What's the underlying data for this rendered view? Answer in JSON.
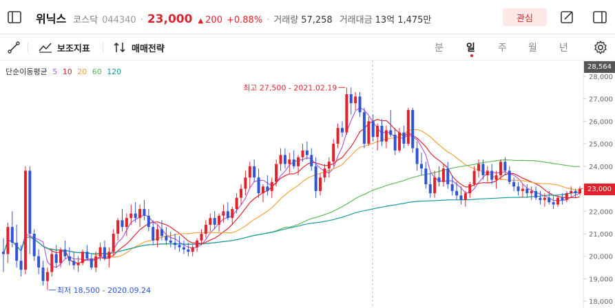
{
  "header": {
    "stock_name": "위닉스",
    "market": "코스닥",
    "code": "044340",
    "price": "23,000",
    "change_arrow": "▲",
    "change": "200",
    "change_pct": "+0.88%",
    "volume_label": "거래량",
    "volume": "57,258",
    "amount_label": "거래대금",
    "amount": "13억 1,475만",
    "favorite_label": "관심"
  },
  "toolbar": {
    "indicator_label": "보조지표",
    "strategy_label": "매매전략",
    "periods": [
      "분",
      "일",
      "주",
      "월",
      "년"
    ],
    "active_period": "일"
  },
  "legend": {
    "title": "단순이동평균",
    "ma": [
      {
        "label": "5",
        "color": "#b15bd6"
      },
      {
        "label": "10",
        "color": "#e0222c"
      },
      {
        "label": "20",
        "color": "#f2a33a"
      },
      {
        "label": "60",
        "color": "#5cb85c"
      },
      {
        "label": "120",
        "color": "#159a9c"
      }
    ]
  },
  "annotations": {
    "high": "최고 27,500 - 2021.02.19",
    "low": "최저 18,500 - 2020.09.24"
  },
  "price_tags": {
    "top": "28,564",
    "current": "23,000"
  },
  "colors": {
    "up": "#e0222c",
    "down": "#2f55d4",
    "accent": "#e0222c"
  },
  "chart_data": {
    "type": "candlestick",
    "y_axis": {
      "ticks": [
        "28,000",
        "27,000",
        "26,000",
        "25,000",
        "24,000",
        "23,000",
        "22,000",
        "21,000",
        "20,000",
        "19,000",
        "18,000"
      ],
      "ylim": [
        17700,
        28700
      ]
    },
    "candles": [
      [
        20200,
        20800,
        19300,
        20100
      ],
      [
        20100,
        21500,
        19700,
        21300
      ],
      [
        21300,
        22000,
        20400,
        20600
      ],
      [
        20600,
        21400,
        19500,
        19800
      ],
      [
        19800,
        20500,
        19100,
        19400
      ],
      [
        19400,
        24000,
        19200,
        23800
      ],
      [
        23800,
        24000,
        20100,
        21000
      ],
      [
        21000,
        21200,
        19800,
        20000
      ],
      [
        20000,
        20300,
        19200,
        19500
      ],
      [
        19500,
        19800,
        18700,
        18900
      ],
      [
        18900,
        19500,
        18500,
        19300
      ],
      [
        19300,
        20300,
        19100,
        20100
      ],
      [
        20100,
        20500,
        19500,
        19700
      ],
      [
        19700,
        20400,
        19500,
        20300
      ],
      [
        20300,
        20700,
        19900,
        20000
      ],
      [
        20000,
        20400,
        19600,
        19800
      ],
      [
        19800,
        20200,
        19400,
        19600
      ],
      [
        19600,
        20000,
        19300,
        19700
      ],
      [
        19700,
        20300,
        19600,
        20200
      ],
      [
        20200,
        20500,
        19800,
        19900
      ],
      [
        19900,
        20100,
        19400,
        19500
      ],
      [
        19500,
        20200,
        19300,
        20000
      ],
      [
        20000,
        20600,
        19800,
        20400
      ],
      [
        20400,
        20700,
        19800,
        19900
      ],
      [
        19900,
        20400,
        19500,
        20200
      ],
      [
        20200,
        21200,
        20000,
        21000
      ],
      [
        21000,
        21700,
        20700,
        21600
      ],
      [
        21600,
        22100,
        21100,
        21300
      ],
      [
        21300,
        21900,
        20900,
        21700
      ],
      [
        21700,
        22300,
        21400,
        21900
      ],
      [
        21900,
        22400,
        21500,
        21700
      ],
      [
        21700,
        22300,
        21300,
        22100
      ],
      [
        22100,
        22500,
        21600,
        21800
      ],
      [
        21800,
        22100,
        21100,
        21300
      ],
      [
        21300,
        21600,
        20500,
        20700
      ],
      [
        20700,
        21400,
        20400,
        21200
      ],
      [
        21200,
        21600,
        20700,
        20900
      ],
      [
        20900,
        21300,
        20500,
        20700
      ],
      [
        20700,
        21100,
        20400,
        20600
      ],
      [
        20600,
        21000,
        20300,
        20500
      ],
      [
        20500,
        20900,
        20200,
        20400
      ],
      [
        20400,
        20700,
        20100,
        20300
      ],
      [
        20300,
        20600,
        20000,
        20200
      ],
      [
        20200,
        20500,
        20000,
        20400
      ],
      [
        20400,
        20800,
        20200,
        20700
      ],
      [
        20700,
        21200,
        20500,
        21000
      ],
      [
        21000,
        21600,
        20800,
        21400
      ],
      [
        21400,
        21900,
        21100,
        21700
      ],
      [
        21700,
        22000,
        21200,
        21400
      ],
      [
        21400,
        21900,
        21100,
        21800
      ],
      [
        21800,
        22300,
        21500,
        22000
      ],
      [
        22000,
        22400,
        21600,
        21700
      ],
      [
        21700,
        22200,
        21400,
        22100
      ],
      [
        22100,
        22800,
        21900,
        22600
      ],
      [
        22600,
        23200,
        22300,
        23000
      ],
      [
        23000,
        23800,
        22700,
        23500
      ],
      [
        23500,
        24200,
        23000,
        24000
      ],
      [
        24000,
        24300,
        23300,
        23500
      ],
      [
        23500,
        23900,
        22600,
        22800
      ],
      [
        22800,
        23200,
        22400,
        23100
      ],
      [
        23100,
        23600,
        22700,
        22900
      ],
      [
        22900,
        23500,
        22600,
        23300
      ],
      [
        23300,
        24300,
        23100,
        24100
      ],
      [
        24100,
        24800,
        23800,
        24500
      ],
      [
        24500,
        24800,
        23900,
        24100
      ],
      [
        24100,
        24600,
        23700,
        24300
      ],
      [
        24300,
        24700,
        23900,
        24000
      ],
      [
        24000,
        24500,
        23600,
        24400
      ],
      [
        24400,
        25000,
        24200,
        24700
      ],
      [
        24700,
        25100,
        24300,
        24500
      ],
      [
        24500,
        24800,
        23800,
        24000
      ],
      [
        24000,
        24400,
        22600,
        22900
      ],
      [
        22900,
        23700,
        22700,
        23500
      ],
      [
        23500,
        24100,
        23300,
        23900
      ],
      [
        23900,
        24400,
        23500,
        24200
      ],
      [
        24200,
        25200,
        24000,
        25000
      ],
      [
        25000,
        25900,
        24800,
        25700
      ],
      [
        25700,
        26000,
        25300,
        25500
      ],
      [
        25500,
        27500,
        25400,
        27200
      ],
      [
        27200,
        27500,
        26300,
        26800
      ],
      [
        26800,
        27300,
        26500,
        27100
      ],
      [
        27100,
        27300,
        26200,
        26400
      ],
      [
        26400,
        26600,
        24800,
        25000
      ],
      [
        25000,
        26200,
        24900,
        26000
      ],
      [
        26000,
        26300,
        25100,
        25300
      ],
      [
        25300,
        25900,
        24700,
        25800
      ],
      [
        25800,
        26100,
        24900,
        25100
      ],
      [
        25100,
        25800,
        24800,
        25600
      ],
      [
        25600,
        26500,
        25300,
        25400
      ],
      [
        25400,
        25700,
        24500,
        24700
      ],
      [
        24700,
        25700,
        24600,
        25500
      ],
      [
        25500,
        25800,
        24800,
        25000
      ],
      [
        25000,
        26600,
        24900,
        26500
      ],
      [
        26500,
        26600,
        24600,
        24800
      ],
      [
        24800,
        25100,
        23800,
        24100
      ],
      [
        24100,
        24600,
        23600,
        23900
      ],
      [
        23900,
        24200,
        23000,
        23200
      ],
      [
        23200,
        23700,
        22600,
        22800
      ],
      [
        22800,
        23800,
        22600,
        23500
      ],
      [
        23500,
        24000,
        23100,
        23300
      ],
      [
        23300,
        24100,
        23100,
        23900
      ],
      [
        23900,
        24200,
        23000,
        23200
      ],
      [
        23200,
        23600,
        22700,
        22900
      ],
      [
        22900,
        23300,
        22500,
        22700
      ],
      [
        22700,
        23100,
        22300,
        22500
      ],
      [
        22500,
        22900,
        22200,
        22800
      ],
      [
        22800,
        23300,
        22600,
        23200
      ],
      [
        23200,
        24000,
        23100,
        23800
      ],
      [
        23800,
        24300,
        23500,
        24100
      ],
      [
        24100,
        24300,
        23400,
        23600
      ],
      [
        23600,
        24000,
        23300,
        23800
      ],
      [
        23800,
        24100,
        23200,
        23400
      ],
      [
        23400,
        23800,
        23000,
        23600
      ],
      [
        23600,
        24300,
        23400,
        24200
      ],
      [
        24200,
        24400,
        23600,
        23800
      ],
      [
        23800,
        24000,
        23200,
        23300
      ],
      [
        23300,
        23500,
        22900,
        23100
      ],
      [
        23100,
        23300,
        22700,
        22900
      ],
      [
        22900,
        23200,
        22600,
        23000
      ],
      [
        23000,
        23200,
        22600,
        22800
      ],
      [
        22800,
        23100,
        22500,
        22900
      ],
      [
        22900,
        23100,
        22500,
        22600
      ],
      [
        22600,
        22900,
        22300,
        22500
      ],
      [
        22500,
        22800,
        22200,
        22600
      ],
      [
        22600,
        22900,
        22300,
        22400
      ],
      [
        22400,
        22700,
        22100,
        22300
      ],
      [
        22300,
        22700,
        22200,
        22600
      ],
      [
        22600,
        22800,
        22300,
        22500
      ],
      [
        22500,
        22900,
        22400,
        22800
      ],
      [
        22800,
        23100,
        22600,
        22900
      ],
      [
        22900,
        23000,
        22600,
        22800
      ],
      [
        22800,
        23100,
        22700,
        23000
      ]
    ]
  }
}
